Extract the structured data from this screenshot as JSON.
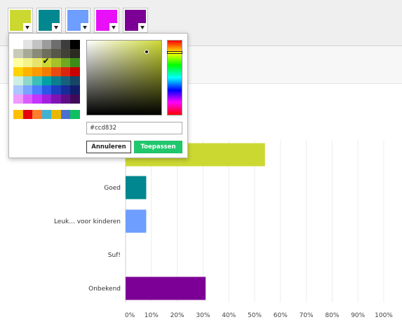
{
  "toolbar": {
    "swatches": [
      {
        "name": "color-1",
        "color": "#ccd832"
      },
      {
        "name": "color-2",
        "color": "#00878f"
      },
      {
        "name": "color-3",
        "color": "#6e9eff"
      },
      {
        "name": "color-4",
        "color": "#e710f9"
      },
      {
        "name": "color-5",
        "color": "#7d0096"
      }
    ],
    "dropdown_icon": "caret-down-icon"
  },
  "color_picker": {
    "palette": [
      [
        "#ffffff",
        "#e4e4e4",
        "#c3c3c3",
        "#9c9c9c",
        "#6e6e6e",
        "#3c3c3c",
        "#000000"
      ],
      [
        "#c8cbb8",
        "#a8aa97",
        "#898a77",
        "#6d6e5d",
        "#565748",
        "#414136",
        "#2b2b22"
      ],
      [
        "#ffffa0",
        "#f4f38a",
        "#e7e46d",
        "#cdd834",
        "#a4c22b",
        "#71a821",
        "#3d8c1b"
      ],
      [
        "#ffd200",
        "#fcb300",
        "#fb9a00",
        "#f37c00",
        "#e84a12",
        "#d8260f",
        "#c80000"
      ],
      [
        "#cdeee3",
        "#8fd7c8",
        "#3abfba",
        "#00a1a6",
        "#0b7e90",
        "#16617d",
        "#174566"
      ],
      [
        "#a9c6ff",
        "#78a3ff",
        "#4a7eff",
        "#2b58e5",
        "#1c3fc1",
        "#172c98",
        "#101d6b"
      ],
      [
        "#ef9bff",
        "#dc5dff",
        "#c533ff",
        "#a21fdd",
        "#7f14b2",
        "#5f0f85",
        "#3f0b59"
      ]
    ],
    "selected": {
      "row": 2,
      "col": 3
    },
    "selected_icon": "checkmark-icon",
    "recent": [
      "#ffbe00",
      "#e5000c",
      "#ff7d2b",
      "#3fb2d3",
      "#e8b800",
      "#4a6fd1",
      "#10bf62"
    ],
    "hex_value": "#ccd832",
    "cancel_label": "Annuleren",
    "apply_label": "Toepassen",
    "base_hue": "#ccd832"
  },
  "chart_data": {
    "type": "bar",
    "orientation": "horizontal",
    "categories": [
      "",
      "Goed",
      "Leuk... voor kinderen",
      "Suf!",
      "Onbekend"
    ],
    "values": [
      54,
      8,
      8,
      0,
      31
    ],
    "colors": [
      "#ccd832",
      "#00878f",
      "#6e9eff",
      "#e710f9",
      "#7d0096"
    ],
    "xlim": [
      0,
      100
    ],
    "xticks": [
      "0%",
      "10%",
      "20%",
      "30%",
      "40%",
      "50%",
      "60%",
      "70%",
      "80%",
      "90%",
      "100%"
    ],
    "grid": true
  }
}
